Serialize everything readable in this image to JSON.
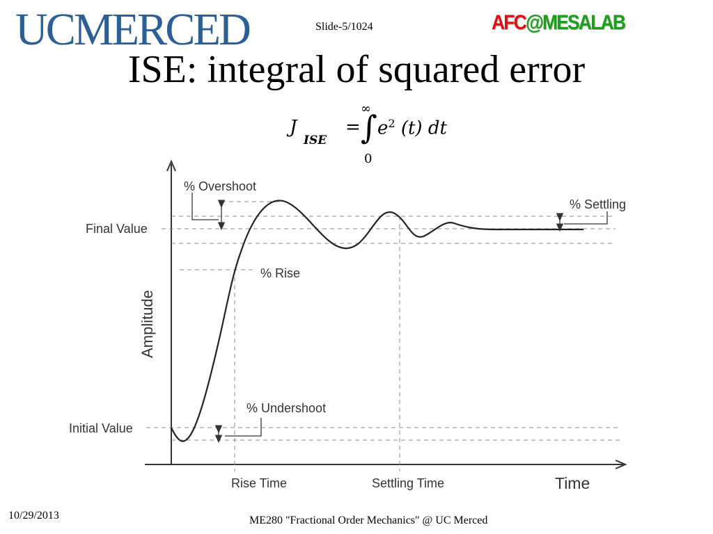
{
  "header": {
    "logo_left": "UCMERCED",
    "slide_number": "Slide-5/1024",
    "logo_right_part1": "AFC",
    "logo_right_part2": "@MESALAB"
  },
  "title": "ISE: integral of squared error",
  "formula": {
    "lhs_symbol": "J",
    "lhs_subscript": "ISE",
    "equals": "=",
    "upper_limit": "∞",
    "integral_sign": "∫",
    "lower_limit": "0",
    "integrand": "e",
    "exponent": "2",
    "integrand_rest": " (t) dt"
  },
  "diagram": {
    "y_axis_label": "Amplitude",
    "x_axis_label": "Time",
    "left_labels": {
      "final_value": "Final Value",
      "initial_value": "Initial Value"
    },
    "annotations": {
      "overshoot": "% Overshoot",
      "rise": "% Rise",
      "settling": "% Settling",
      "undershoot": "% Undershoot"
    },
    "bottom_labels": {
      "rise_time": "Rise Time",
      "settling_time": "Settling Time"
    },
    "colors": {
      "curve": "#222222",
      "dashes": "#8a8a8a",
      "text": "#333333"
    }
  },
  "footer": {
    "date": "10/29/2013",
    "course": "ME280 \"Fractional Order Mechanics\" @ UC Merced"
  }
}
